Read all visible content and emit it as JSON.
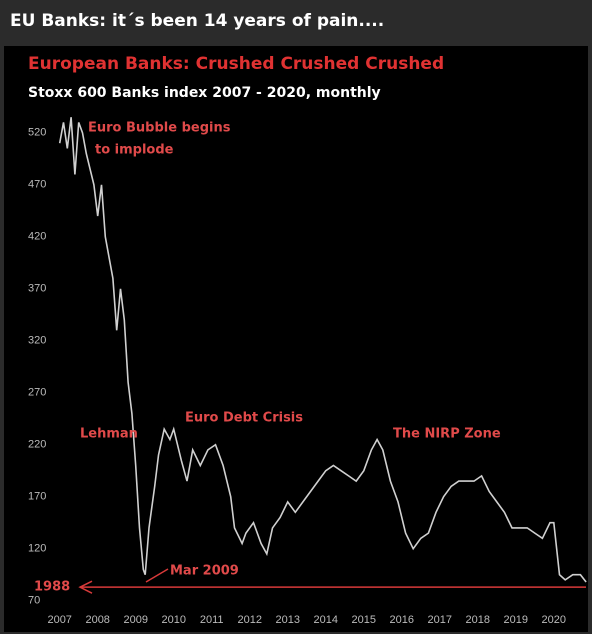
{
  "header": {
    "title": "EU Banks: it´s been 14 years of pain...."
  },
  "chart_data": {
    "type": "line",
    "title": "European Banks: Crushed Crushed Crushed",
    "subtitle": "Stoxx 600 Banks index 2007 - 2020, monthly",
    "annotations": [
      "Euro Bubble begins",
      "to implode",
      "Lehman",
      "Euro Debt Crisis",
      "The NIRP Zone",
      "Mar 2009",
      "1988"
    ],
    "hline": 83,
    "hline_color": "#d83a3a",
    "xlim": [
      2006.85,
      2020.9
    ],
    "xticks": [
      2007,
      2008,
      2009,
      2010,
      2011,
      2012,
      2013,
      2014,
      2015,
      2016,
      2017,
      2018,
      2019,
      2020
    ],
    "ylim": [
      62,
      540
    ],
    "yticks": [
      70,
      120,
      170,
      220,
      270,
      320,
      370,
      420,
      470,
      520
    ],
    "series": [
      {
        "name": "Stoxx 600 Banks",
        "color": "#d0d0d0",
        "x": [
          2007.0,
          2007.1,
          2007.2,
          2007.3,
          2007.4,
          2007.5,
          2007.6,
          2007.7,
          2007.9,
          2008.0,
          2008.1,
          2008.2,
          2008.3,
          2008.4,
          2008.5,
          2008.6,
          2008.7,
          2008.8,
          2008.9,
          2009.0,
          2009.1,
          2009.2,
          2009.25,
          2009.35,
          2009.5,
          2009.6,
          2009.75,
          2009.9,
          2010.0,
          2010.2,
          2010.35,
          2010.5,
          2010.7,
          2010.9,
          2011.1,
          2011.3,
          2011.5,
          2011.6,
          2011.8,
          2011.9,
          2012.1,
          2012.3,
          2012.45,
          2012.6,
          2012.8,
          2013.0,
          2013.2,
          2013.4,
          2013.6,
          2013.8,
          2014.0,
          2014.2,
          2014.4,
          2014.6,
          2014.8,
          2015.0,
          2015.2,
          2015.35,
          2015.5,
          2015.7,
          2015.9,
          2016.1,
          2016.3,
          2016.5,
          2016.7,
          2016.9,
          2017.1,
          2017.3,
          2017.5,
          2017.7,
          2017.9,
          2018.1,
          2018.3,
          2018.5,
          2018.7,
          2018.9,
          2019.1,
          2019.3,
          2019.5,
          2019.7,
          2019.9,
          2020.0,
          2020.15,
          2020.3,
          2020.5,
          2020.7,
          2020.85
        ],
        "values": [
          510,
          530,
          505,
          535,
          480,
          530,
          520,
          500,
          470,
          440,
          470,
          420,
          400,
          380,
          330,
          370,
          340,
          280,
          250,
          200,
          140,
          100,
          95,
          140,
          180,
          210,
          235,
          225,
          235,
          205,
          185,
          215,
          200,
          215,
          220,
          200,
          170,
          140,
          125,
          135,
          145,
          125,
          115,
          140,
          150,
          165,
          155,
          165,
          175,
          185,
          195,
          200,
          195,
          190,
          185,
          195,
          215,
          225,
          215,
          185,
          165,
          135,
          120,
          130,
          135,
          155,
          170,
          180,
          185,
          185,
          185,
          190,
          175,
          165,
          155,
          140,
          140,
          140,
          135,
          130,
          145,
          145,
          95,
          90,
          95,
          95,
          88
        ]
      }
    ]
  }
}
